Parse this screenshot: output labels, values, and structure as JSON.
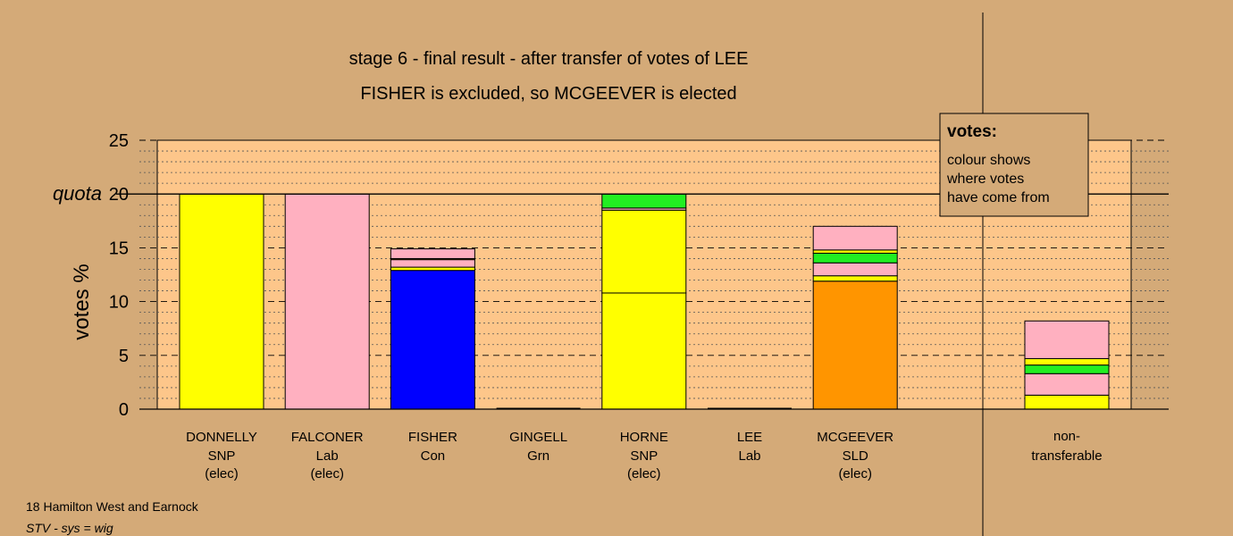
{
  "chart_data": {
    "type": "bar",
    "stacked": true,
    "title": "stage 6 - final result - after transfer of votes of LEE",
    "subtitle": "FISHER is excluded, so MCGEEVER is elected",
    "ylabel": "votes %",
    "quota_label": "quota",
    "quota": 20,
    "ylim": [
      0,
      25
    ],
    "yticks": [
      0,
      5,
      10,
      15,
      20,
      25
    ],
    "grid": true,
    "colors": {
      "background": "#d4aa78",
      "plot": "#fdc68a",
      "snp": "#ffff00",
      "lab": "#ffb0c0",
      "con": "#0000ff",
      "grn": "#22ee22",
      "sld": "#ff9500"
    },
    "candidates": [
      {
        "name": "DONNELLY",
        "party": "SNP",
        "status": "(elec)",
        "segments": [
          {
            "color": "snp",
            "value": 20.0
          }
        ]
      },
      {
        "name": "FALCONER",
        "party": "Lab",
        "status": "(elec)",
        "segments": [
          {
            "color": "lab",
            "value": 20.0
          }
        ]
      },
      {
        "name": "FISHER",
        "party": "Con",
        "status": "",
        "segments": [
          {
            "color": "con",
            "value": 12.9
          },
          {
            "color": "snp",
            "value": 0.3
          },
          {
            "color": "lab",
            "value": 0.7
          },
          {
            "color": "sld",
            "value": 0.1
          },
          {
            "color": "lab",
            "value": 0.9
          }
        ]
      },
      {
        "name": "GINGELL",
        "party": "Grn",
        "status": "",
        "segments": []
      },
      {
        "name": "HORNE",
        "party": "SNP",
        "status": "(elec)",
        "segments": [
          {
            "color": "snp",
            "value": 10.8
          },
          {
            "color": "snp",
            "value": 7.7
          },
          {
            "color": "lab",
            "value": 0.2
          },
          {
            "color": "grn",
            "value": 1.3
          }
        ]
      },
      {
        "name": "LEE",
        "party": "Lab",
        "status": "",
        "segments": []
      },
      {
        "name": "MCGEEVER",
        "party": "SLD",
        "status": "(elec)",
        "segments": [
          {
            "color": "sld",
            "value": 11.9
          },
          {
            "color": "snp",
            "value": 0.5
          },
          {
            "color": "lab",
            "value": 1.2
          },
          {
            "color": "grn",
            "value": 0.9
          },
          {
            "color": "snp",
            "value": 0.3
          },
          {
            "color": "lab",
            "value": 2.2
          }
        ]
      }
    ],
    "non_transferable": {
      "label_line1": "non-",
      "label_line2": "transferable",
      "segments": [
        {
          "color": "snp",
          "value": 1.3
        },
        {
          "color": "lab",
          "value": 2.0
        },
        {
          "color": "grn",
          "value": 0.8
        },
        {
          "color": "snp",
          "value": 0.6
        },
        {
          "color": "lab",
          "value": 3.5
        }
      ]
    },
    "legend": {
      "title": "votes:",
      "lines": [
        "colour shows",
        "where votes",
        "have come from"
      ]
    }
  },
  "footer": {
    "constituency": "18 Hamilton West and Earnock",
    "system": "STV - sys = wig"
  }
}
